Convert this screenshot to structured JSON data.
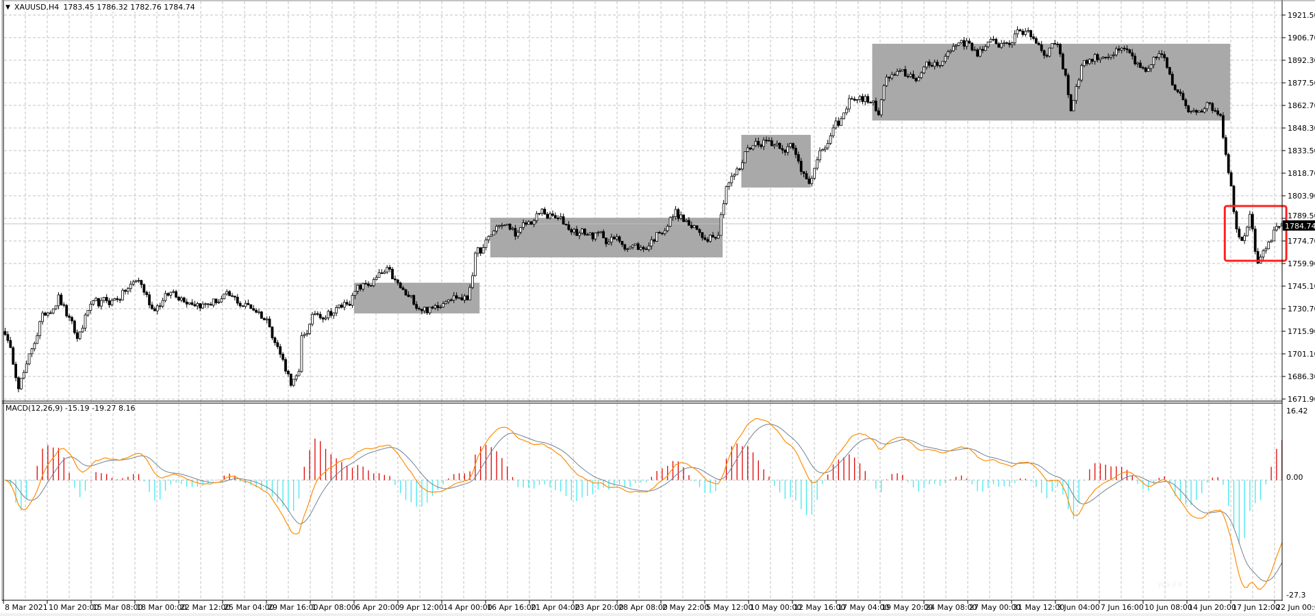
{
  "header": {
    "collapse_icon": "triangle-down-icon",
    "symbol": "XAUUSD,H4",
    "ohlc": "1783.45 1786.32 1782.76 1784.74"
  },
  "price_axis": {
    "labels": [
      "1921.50",
      "1906.70",
      "1892.30",
      "1877.50",
      "1862.70",
      "1848.30",
      "1833.50",
      "1818.70",
      "1803.90",
      "1789.50",
      "1774.70",
      "1759.90",
      "1745.10",
      "1730.70",
      "1715.90",
      "1701.10",
      "1686.30",
      "1671.90"
    ],
    "current_price": "1784.74"
  },
  "macd": {
    "label": "MACD(12,26,9) -15.19 -19.27 8.16",
    "axis_labels": {
      "top": "16.42",
      "zero": "0.00",
      "bottom": "-27.3"
    },
    "range": [
      -27.3,
      16.42
    ],
    "params": [
      12,
      26,
      9
    ]
  },
  "time_axis": {
    "labels": [
      "8 Mar 2021",
      "10 Mar 20:00",
      "15 Mar 08:00",
      "18 Mar 00:00",
      "22 Mar 12:00",
      "25 Mar 04:00",
      "29 Mar 16:00",
      "1 Apr 08:00",
      "6 Apr 20:00",
      "9 Apr 12:00",
      "14 Apr 00:00",
      "16 Apr 16:00",
      "21 Apr 04:00",
      "23 Apr 20:00",
      "28 Apr 08:00",
      "2 May 22:00",
      "5 May 12:00",
      "10 May 00:00",
      "12 May 16:00",
      "17 May 04:00",
      "19 May 20:00",
      "24 May 08:00",
      "27 May 00:00",
      "31 May 12:00",
      "3 Jun 04:00",
      "7 Jun 16:00",
      "10 Jun 08:00",
      "14 Jun 20:00",
      "17 Jun 12:00",
      "22 Jun 00:00"
    ]
  },
  "watermark": "WikiFX",
  "colors": {
    "grid": "#c0c0c0",
    "box": "#a9a9a9",
    "highlight": "#ff2020",
    "macd_line": "#ff8c00",
    "signal_line": "#708090",
    "hist_pos": "#e00000",
    "hist_neg": "#40e8f0",
    "price_line": "#c0c0c0"
  },
  "chart_data": {
    "type": "candlestick",
    "bars": 480,
    "price_range": [
      1671.9,
      1921.5
    ],
    "last_bar": {
      "open": 1783.45,
      "high": 1786.32,
      "low": 1782.76,
      "close": 1784.74
    },
    "close_path": [
      [
        0,
        1715
      ],
      [
        2,
        1700
      ],
      [
        5,
        1682
      ],
      [
        8,
        1690
      ],
      [
        13,
        1720
      ],
      [
        20,
        1738
      ],
      [
        27,
        1708
      ],
      [
        31,
        1728
      ],
      [
        41,
        1735
      ],
      [
        50,
        1748
      ],
      [
        55,
        1730
      ],
      [
        63,
        1740
      ],
      [
        75,
        1732
      ],
      [
        82,
        1736
      ],
      [
        94,
        1729
      ],
      [
        99,
        1720
      ],
      [
        104,
        1695
      ],
      [
        107,
        1682
      ],
      [
        110,
        1684
      ],
      [
        111,
        1708
      ],
      [
        116,
        1725
      ],
      [
        126,
        1730
      ],
      [
        132,
        1741
      ],
      [
        143,
        1752
      ],
      [
        151,
        1735
      ],
      [
        160,
        1728
      ],
      [
        166,
        1740
      ],
      [
        173,
        1735
      ],
      [
        176,
        1764
      ],
      [
        179,
        1768
      ],
      [
        185,
        1785
      ],
      [
        192,
        1778
      ],
      [
        201,
        1792
      ],
      [
        214,
        1780
      ],
      [
        232,
        1772
      ],
      [
        239,
        1768
      ],
      [
        251,
        1792
      ],
      [
        261,
        1775
      ],
      [
        267,
        1782
      ],
      [
        270,
        1812
      ],
      [
        275,
        1820
      ],
      [
        278,
        1835
      ],
      [
        283,
        1840
      ],
      [
        294,
        1836
      ],
      [
        298,
        1820
      ],
      [
        301,
        1816
      ],
      [
        308,
        1838
      ],
      [
        314,
        1855
      ],
      [
        317,
        1868
      ],
      [
        323,
        1866
      ],
      [
        327,
        1858
      ],
      [
        330,
        1880
      ],
      [
        342,
        1882
      ],
      [
        352,
        1895
      ],
      [
        358,
        1906
      ],
      [
        364,
        1898
      ],
      [
        374,
        1904
      ],
      [
        383,
        1912
      ],
      [
        389,
        1898
      ],
      [
        394,
        1905
      ],
      [
        397,
        1880
      ],
      [
        399,
        1860
      ],
      [
        403,
        1890
      ],
      [
        414,
        1898
      ],
      [
        421,
        1895
      ],
      [
        427,
        1880
      ],
      [
        433,
        1898
      ],
      [
        438,
        1870
      ],
      [
        443,
        1860
      ],
      [
        449,
        1864
      ],
      [
        455,
        1858
      ],
      [
        457,
        1832
      ],
      [
        459,
        1812
      ],
      [
        461,
        1782
      ],
      [
        463,
        1772
      ],
      [
        466,
        1794
      ],
      [
        468,
        1770
      ],
      [
        469,
        1764
      ],
      [
        473,
        1776
      ],
      [
        477,
        1784.74
      ]
    ],
    "boxes": [
      {
        "from_bar": 131,
        "to_bar": 178,
        "high": 1746.1,
        "low": 1726.0
      },
      {
        "from_bar": 182,
        "to_bar": 269,
        "high": 1788.7,
        "low": 1762.7
      },
      {
        "from_bar": 276,
        "to_bar": 302,
        "high": 1843.0,
        "low": 1808.5
      },
      {
        "from_bar": 325,
        "to_bar": 459,
        "high": 1902.7,
        "low": 1852.4
      }
    ],
    "highlight": {
      "from_bar": 457,
      "to_bar": 479,
      "high": 1796.4,
      "low": 1760.5
    }
  }
}
